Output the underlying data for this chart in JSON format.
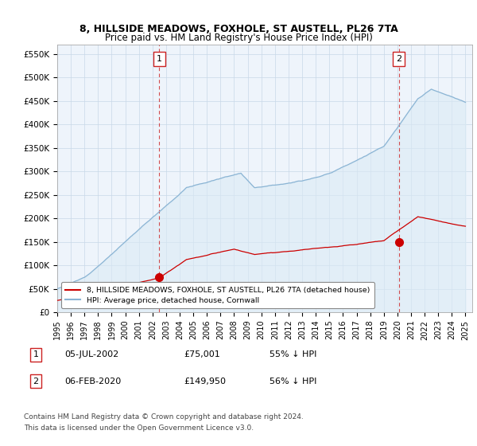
{
  "title": "8, HILLSIDE MEADOWS, FOXHOLE, ST AUSTELL, PL26 7TA",
  "subtitle": "Price paid vs. HM Land Registry's House Price Index (HPI)",
  "xlim": [
    1995.0,
    2025.5
  ],
  "ylim": [
    0,
    570000
  ],
  "yticks": [
    0,
    50000,
    100000,
    150000,
    200000,
    250000,
    300000,
    350000,
    400000,
    450000,
    500000,
    550000
  ],
  "ytick_labels": [
    "£0",
    "£50K",
    "£100K",
    "£150K",
    "£200K",
    "£250K",
    "£300K",
    "£350K",
    "£400K",
    "£450K",
    "£500K",
    "£550K"
  ],
  "xticks": [
    1995,
    1996,
    1997,
    1998,
    1999,
    2000,
    2001,
    2002,
    2003,
    2004,
    2005,
    2006,
    2007,
    2008,
    2009,
    2010,
    2011,
    2012,
    2013,
    2014,
    2015,
    2016,
    2017,
    2018,
    2019,
    2020,
    2021,
    2022,
    2023,
    2024,
    2025
  ],
  "hpi_color": "#8ab4d4",
  "hpi_fill_color": "#daeaf5",
  "price_color": "#cc0000",
  "vline_color": "#cc2222",
  "point1_x": 2002.5,
  "point1_y": 75001,
  "point2_x": 2020.1,
  "point2_y": 149950,
  "legend_label1": "8, HILLSIDE MEADOWS, FOXHOLE, ST AUSTELL, PL26 7TA (detached house)",
  "legend_label2": "HPI: Average price, detached house, Cornwall",
  "footer1": "Contains HM Land Registry data © Crown copyright and database right 2024.",
  "footer2": "This data is licensed under the Open Government Licence v3.0.",
  "background_color": "#ffffff",
  "plot_bg_color": "#eef4fb",
  "grid_color": "#c8d8e8"
}
